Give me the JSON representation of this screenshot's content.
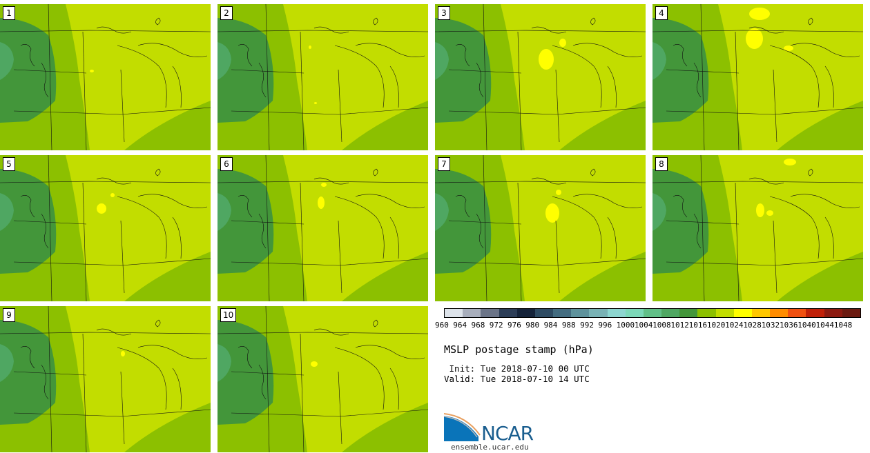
{
  "panels": [
    {
      "label": "1"
    },
    {
      "label": "2"
    },
    {
      "label": "3"
    },
    {
      "label": "4"
    },
    {
      "label": "5"
    },
    {
      "label": "6"
    },
    {
      "label": "7"
    },
    {
      "label": "8"
    },
    {
      "label": "9"
    },
    {
      "label": "10"
    }
  ],
  "colorbar": {
    "labels": [
      "960",
      "964",
      "968",
      "972",
      "976",
      "980",
      "984",
      "988",
      "992",
      "996",
      "1000",
      "1004",
      "1008",
      "1012",
      "1016",
      "1020",
      "1024",
      "1028",
      "1032",
      "1036",
      "1040",
      "1044",
      "1048"
    ],
    "colors": [
      "#dde3ea",
      "#a8aebc",
      "#6b7488",
      "#2c3d57",
      "#15233a",
      "#2e4b63",
      "#436c80",
      "#5e929c",
      "#79b2b5",
      "#8dd6d0",
      "#7cd8b8",
      "#62c088",
      "#4fa762",
      "#43963a",
      "#8cc000",
      "#c2dd00",
      "#ffff00",
      "#ffc800",
      "#ff8c00",
      "#f05010",
      "#c02008",
      "#8c1a10",
      "#6b1a10"
    ]
  },
  "title": "MSLP postage stamp (hPa)",
  "init_text": " Init: Tue 2018-07-10 00 UTC",
  "valid_text": "Valid: Tue 2018-07-10 14 UTC",
  "logo": {
    "text": "NCAR",
    "site": "ensemble.ucar.edu"
  },
  "map_colors": {
    "base": "#c2dd00",
    "mid": "#8cc000",
    "dark": "#43963a",
    "teal": "#4fa762",
    "high": "#ffff00",
    "border": "#111111"
  }
}
